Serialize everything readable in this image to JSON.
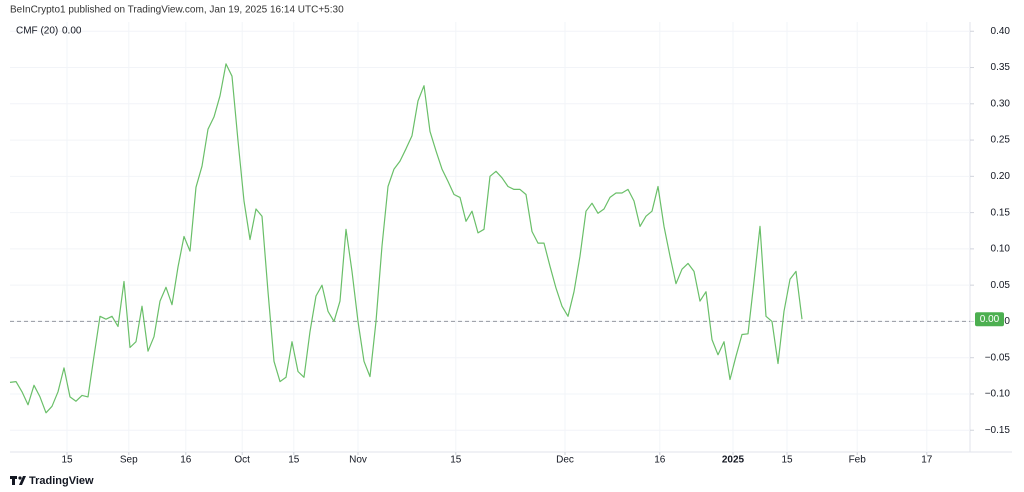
{
  "header": "BeInCrypto1 published on TradingView.com, Jan 19, 2025 16:14 UTC+5:30",
  "footer": "TradingView",
  "chart_data": {
    "type": "line",
    "series": [
      {
        "name": "CMF (20)",
        "color": "#6abf69",
        "values": [
          -0.084,
          -0.083,
          -0.097,
          -0.115,
          -0.088,
          -0.104,
          -0.126,
          -0.117,
          -0.097,
          -0.064,
          -0.104,
          -0.11,
          -0.102,
          -0.104,
          -0.048,
          0.007,
          0.003,
          0.007,
          -0.007,
          0.055,
          -0.036,
          -0.028,
          0.021,
          -0.041,
          -0.021,
          0.028,
          0.047,
          0.023,
          0.075,
          0.117,
          0.097,
          0.185,
          0.214,
          0.265,
          0.282,
          0.311,
          0.355,
          0.338,
          0.249,
          0.166,
          0.113,
          0.155,
          0.145,
          0.041,
          -0.055,
          -0.083,
          -0.077,
          -0.028,
          -0.069,
          -0.077,
          -0.014,
          0.035,
          0.05,
          0.014,
          0.0,
          0.028,
          0.127,
          0.069,
          0.0,
          -0.055,
          -0.076,
          0.0,
          0.104,
          0.186,
          0.21,
          0.221,
          0.238,
          0.256,
          0.304,
          0.325,
          0.262,
          0.235,
          0.21,
          0.193,
          0.175,
          0.171,
          0.138,
          0.152,
          0.122,
          0.127,
          0.2,
          0.207,
          0.198,
          0.186,
          0.182,
          0.182,
          0.175,
          0.124,
          0.108,
          0.108,
          0.076,
          0.046,
          0.021,
          0.007,
          0.041,
          0.09,
          0.152,
          0.163,
          0.149,
          0.155,
          0.171,
          0.177,
          0.177,
          0.182,
          0.166,
          0.131,
          0.145,
          0.152,
          0.186,
          0.131,
          0.09,
          0.052,
          0.072,
          0.08,
          0.069,
          0.028,
          0.041,
          -0.025,
          -0.046,
          -0.028,
          -0.08,
          -0.048,
          -0.018,
          -0.017,
          0.055,
          0.131,
          0.007,
          0.0,
          -0.058,
          0.014,
          0.058,
          0.069,
          0.003
        ]
      }
    ],
    "last_value_label": "0.00",
    "hline": 0,
    "xlim": [
      0,
      160
    ],
    "xticks": [
      {
        "value": 9.5,
        "label": "15"
      },
      {
        "value": 19.8,
        "label": "Sep"
      },
      {
        "value": 29.3,
        "label": "16"
      },
      {
        "value": 38.7,
        "label": "Oct"
      },
      {
        "value": 47.3,
        "label": "15"
      },
      {
        "value": 58,
        "label": "Nov"
      },
      {
        "value": 74.3,
        "label": "15"
      },
      {
        "value": 92.5,
        "label": "Dec"
      },
      {
        "value": 108.3,
        "label": "16"
      },
      {
        "value": 120.5,
        "label": "2025"
      },
      {
        "value": 129.5,
        "label": "15"
      },
      {
        "value": 141.2,
        "label": "Feb"
      },
      {
        "value": 152.8,
        "label": "17"
      }
    ],
    "ylim": [
      -0.18,
      0.41
    ],
    "yticks": [
      {
        "value": 0.4,
        "label": "0.40"
      },
      {
        "value": 0.35,
        "label": "0.35"
      },
      {
        "value": 0.3,
        "label": "0.30"
      },
      {
        "value": 0.25,
        "label": "0.25"
      },
      {
        "value": 0.2,
        "label": "0.20"
      },
      {
        "value": 0.15,
        "label": "0.15"
      },
      {
        "value": 0.1,
        "label": "0.10"
      },
      {
        "value": 0.05,
        "label": "0.05"
      },
      {
        "value": 0,
        "label": "0.00"
      },
      {
        "value": -0.05,
        "label": "−0.05"
      },
      {
        "value": -0.1,
        "label": "−0.10"
      },
      {
        "value": -0.15,
        "label": "−0.15"
      }
    ],
    "grid": true
  }
}
